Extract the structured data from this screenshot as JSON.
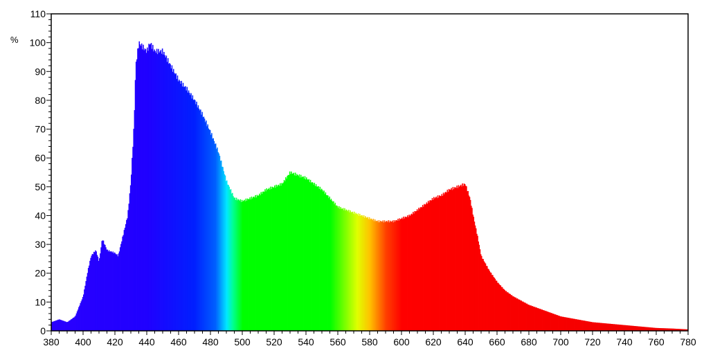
{
  "chart_data": {
    "type": "area",
    "title": "",
    "xlabel": "",
    "ylabel": "%",
    "xlim": [
      380,
      780
    ],
    "ylim": [
      0,
      110
    ],
    "xticks": [
      380,
      400,
      420,
      440,
      460,
      480,
      500,
      520,
      540,
      560,
      580,
      600,
      620,
      640,
      660,
      680,
      700,
      720,
      740,
      760,
      780
    ],
    "yticks": [
      0,
      10,
      20,
      30,
      40,
      50,
      60,
      70,
      80,
      90,
      100,
      110
    ],
    "grid": false,
    "fill": "spectral colour by wavelength",
    "color_stops": [
      {
        "nm": 380,
        "color": "#2a00ff"
      },
      {
        "nm": 440,
        "color": "#2000ff"
      },
      {
        "nm": 470,
        "color": "#0020ff"
      },
      {
        "nm": 483,
        "color": "#0060ff"
      },
      {
        "nm": 490,
        "color": "#00e8ff"
      },
      {
        "nm": 494,
        "color": "#00ff90"
      },
      {
        "nm": 500,
        "color": "#00ff00"
      },
      {
        "nm": 555,
        "color": "#00ff00"
      },
      {
        "nm": 572,
        "color": "#e0ff00"
      },
      {
        "nm": 580,
        "color": "#ffc000"
      },
      {
        "nm": 590,
        "color": "#ff4000"
      },
      {
        "nm": 600,
        "color": "#ff0000"
      },
      {
        "nm": 780,
        "color": "#f00000"
      }
    ],
    "x": [
      380,
      385,
      390,
      395,
      400,
      403,
      405,
      408,
      410,
      412,
      415,
      420,
      422,
      425,
      428,
      430,
      432,
      433,
      435,
      440,
      442,
      445,
      450,
      455,
      460,
      465,
      470,
      475,
      480,
      485,
      490,
      495,
      500,
      505,
      510,
      515,
      520,
      525,
      530,
      535,
      540,
      545,
      550,
      555,
      560,
      565,
      570,
      575,
      580,
      585,
      590,
      595,
      600,
      605,
      610,
      615,
      620,
      625,
      630,
      635,
      640,
      643,
      645,
      648,
      650,
      655,
      660,
      665,
      670,
      680,
      690,
      700,
      710,
      720,
      730,
      740,
      750,
      760,
      770,
      780
    ],
    "y": [
      3,
      4,
      3,
      5,
      12,
      21,
      26,
      28,
      24,
      32,
      28,
      27,
      26,
      33,
      40,
      52,
      72,
      92,
      100,
      97,
      100,
      97,
      97,
      92,
      87,
      84,
      80,
      75,
      69,
      62,
      52,
      46,
      45,
      46,
      47,
      49,
      50,
      51,
      55,
      54,
      53,
      51,
      49,
      46,
      43,
      42,
      41,
      40,
      39,
      38,
      38,
      38,
      39,
      40,
      42,
      44,
      46,
      47,
      49,
      50,
      51,
      46,
      40,
      32,
      26,
      21,
      17,
      14,
      12,
      9,
      7,
      5,
      4,
      3,
      2.5,
      2,
      1.5,
      1,
      0.8,
      0.5
    ]
  }
}
